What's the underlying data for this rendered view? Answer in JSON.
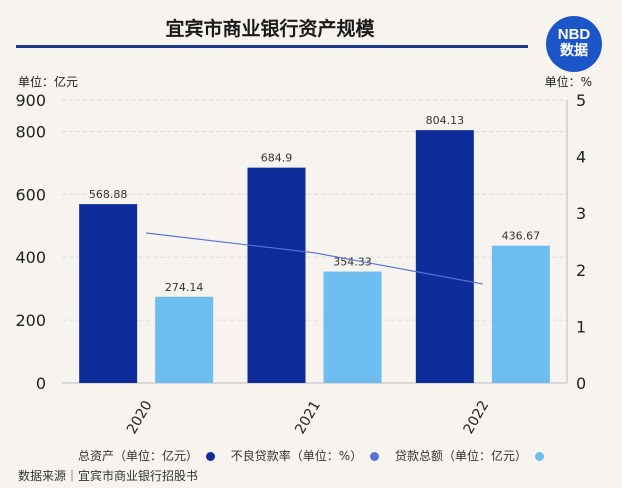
{
  "header": {
    "title": "宜宾市商业银行资产规模",
    "logo_line1": "NBD",
    "logo_line2": "数据"
  },
  "axes": {
    "left_unit": "单位：亿元",
    "right_unit": "单位：%"
  },
  "legend": [
    {
      "label": "总资产（单位：亿元）",
      "color": "#0f2d9a"
    },
    {
      "label": "不良贷款率（单位：%）",
      "color": "#5a72de"
    },
    {
      "label": "贷款总额（单位：亿元）",
      "color": "#6ebdf0"
    }
  ],
  "footer": {
    "source": "数据来源｜宜宾市商业银行招股书"
  },
  "chart_data": {
    "type": "bar",
    "categories": [
      "2020",
      "2021",
      "2022"
    ],
    "series": [
      {
        "name": "总资产（单位：亿元）",
        "values": [
          568.88,
          684.9,
          804.13
        ],
        "labels": [
          "568.88",
          "684.9",
          "804.13"
        ],
        "color": "#0f2d9a",
        "axis": "left",
        "kind": "bar"
      },
      {
        "name": "贷款总额（单位：亿元）",
        "values": [
          274.14,
          354.33,
          436.67
        ],
        "labels": [
          "274.14",
          "354.33",
          "436.67"
        ],
        "color": "#6ebdf0",
        "axis": "left",
        "kind": "bar"
      },
      {
        "name": "不良贷款率（单位：%）",
        "values": [
          2.65,
          2.3,
          1.75
        ],
        "color": "#5a72de",
        "axis": "right",
        "kind": "line"
      }
    ],
    "y_left": {
      "ylim": [
        0,
        900
      ],
      "ticks": [
        "0",
        "200",
        "400",
        "600",
        "800",
        "900"
      ]
    },
    "y_right": {
      "ylim": [
        0,
        5
      ],
      "ticks": [
        "0",
        "1",
        "2",
        "3",
        "4",
        "5"
      ]
    },
    "grid": true,
    "legend_position": "bottom"
  }
}
